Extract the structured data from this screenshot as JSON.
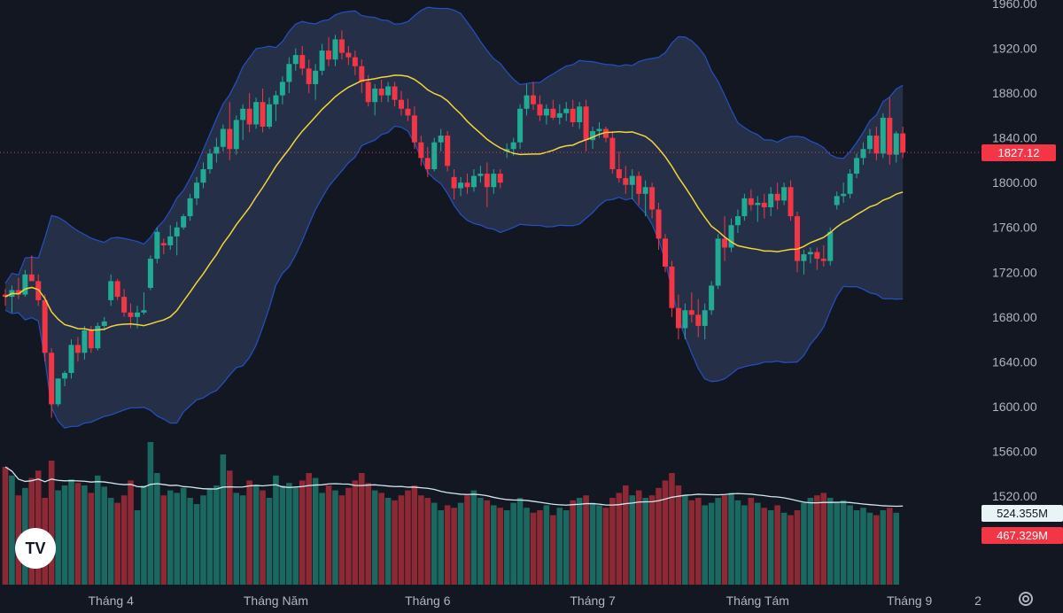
{
  "chart_data": {
    "type": "candlestick",
    "price_axis": {
      "ticks": [
        "1960.00",
        "1920.00",
        "1880.00",
        "1840.00",
        "1800.00",
        "1760.00",
        "1720.00",
        "1680.00",
        "1640.00",
        "1600.00",
        "1560.00",
        "1520.00"
      ],
      "values": [
        1960,
        1920,
        1880,
        1840,
        1800,
        1760,
        1720,
        1680,
        1640,
        1600,
        1560,
        1520
      ],
      "ylim": [
        1476,
        1960
      ]
    },
    "x_axis": {
      "labels": [
        "Tháng 4",
        "Tháng Năm",
        "Tháng 6",
        "Tháng 7",
        "Tháng Tám",
        "Tháng 9"
      ],
      "label_positions_index": [
        16,
        41,
        64,
        89,
        114,
        137
      ]
    },
    "extra_axis_label": "2",
    "last_price": "1827.12",
    "volume_ma_label": "524.355M",
    "volume_label": "467.329M",
    "colors": {
      "up": "#22ab94",
      "down": "#f23645",
      "ma": "#f2d53a",
      "band": "#2c3a55",
      "bandLine": "#2962ff",
      "volMa": "#d1e8ef"
    },
    "candles": [
      [
        1700,
        1705,
        1690,
        1698
      ],
      [
        1698,
        1708,
        1684,
        1704
      ],
      [
        1704,
        1715,
        1696,
        1700
      ],
      [
        1700,
        1722,
        1698,
        1718
      ],
      [
        1718,
        1735,
        1715,
        1712
      ],
      [
        1712,
        1718,
        1690,
        1695
      ],
      [
        1695,
        1700,
        1640,
        1648
      ],
      [
        1648,
        1652,
        1590,
        1602
      ],
      [
        1602,
        1625,
        1600,
        1625
      ],
      [
        1625,
        1632,
        1618,
        1630
      ],
      [
        1630,
        1660,
        1625,
        1655
      ],
      [
        1655,
        1662,
        1640,
        1648
      ],
      [
        1648,
        1672,
        1642,
        1668
      ],
      [
        1668,
        1672,
        1648,
        1652
      ],
      [
        1652,
        1675,
        1650,
        1672
      ],
      [
        1672,
        1680,
        1668,
        1676
      ],
      [
        1695,
        1718,
        1690,
        1712
      ],
      [
        1712,
        1714,
        1695,
        1698
      ],
      [
        1698,
        1705,
        1680,
        1684
      ],
      [
        1684,
        1692,
        1670,
        1680
      ],
      [
        1680,
        1690,
        1670,
        1684
      ],
      [
        1684,
        1702,
        1682,
        1686
      ],
      [
        1706,
        1735,
        1704,
        1732
      ],
      [
        1732,
        1760,
        1728,
        1756
      ],
      [
        1746,
        1750,
        1736,
        1744
      ],
      [
        1744,
        1762,
        1740,
        1752
      ],
      [
        1752,
        1765,
        1735,
        1760
      ],
      [
        1760,
        1772,
        1758,
        1770
      ],
      [
        1770,
        1790,
        1766,
        1786
      ],
      [
        1786,
        1805,
        1780,
        1800
      ],
      [
        1800,
        1818,
        1795,
        1812
      ],
      [
        1812,
        1830,
        1808,
        1826
      ],
      [
        1826,
        1840,
        1818,
        1832
      ],
      [
        1832,
        1852,
        1828,
        1848
      ],
      [
        1848,
        1872,
        1820,
        1830
      ],
      [
        1830,
        1860,
        1825,
        1856
      ],
      [
        1856,
        1870,
        1838,
        1866
      ],
      [
        1866,
        1880,
        1845,
        1852
      ],
      [
        1852,
        1876,
        1848,
        1872
      ],
      [
        1872,
        1884,
        1845,
        1850
      ],
      [
        1850,
        1876,
        1848,
        1870
      ],
      [
        1870,
        1882,
        1855,
        1878
      ],
      [
        1878,
        1895,
        1870,
        1890
      ],
      [
        1890,
        1912,
        1880,
        1906
      ],
      [
        1906,
        1920,
        1900,
        1914
      ],
      [
        1914,
        1922,
        1896,
        1902
      ],
      [
        1902,
        1910,
        1880,
        1888
      ],
      [
        1888,
        1906,
        1874,
        1900
      ],
      [
        1900,
        1924,
        1896,
        1918
      ],
      [
        1918,
        1930,
        1904,
        1910
      ],
      [
        1910,
        1932,
        1904,
        1928
      ],
      [
        1928,
        1936,
        1910,
        1916
      ],
      [
        1916,
        1922,
        1905,
        1912
      ],
      [
        1912,
        1918,
        1896,
        1904
      ],
      [
        1904,
        1910,
        1880,
        1890
      ],
      [
        1890,
        1896,
        1868,
        1872
      ],
      [
        1872,
        1888,
        1860,
        1884
      ],
      [
        1884,
        1892,
        1872,
        1878
      ],
      [
        1878,
        1890,
        1872,
        1886
      ],
      [
        1886,
        1890,
        1868,
        1874
      ],
      [
        1874,
        1882,
        1860,
        1866
      ],
      [
        1866,
        1875,
        1855,
        1860
      ],
      [
        1860,
        1868,
        1830,
        1836
      ],
      [
        1836,
        1842,
        1815,
        1822
      ],
      [
        1822,
        1832,
        1805,
        1812
      ],
      [
        1812,
        1840,
        1810,
        1836
      ],
      [
        1836,
        1848,
        1828,
        1842
      ],
      [
        1842,
        1846,
        1810,
        1815
      ],
      [
        1805,
        1812,
        1785,
        1795
      ],
      [
        1795,
        1805,
        1788,
        1800
      ],
      [
        1800,
        1808,
        1790,
        1796
      ],
      [
        1796,
        1812,
        1792,
        1806
      ],
      [
        1806,
        1815,
        1800,
        1808
      ],
      [
        1808,
        1818,
        1778,
        1796
      ],
      [
        1796,
        1812,
        1790,
        1808
      ],
      [
        1808,
        1812,
        1795,
        1800
      ],
      [
        1828,
        1835,
        1822,
        1830
      ],
      [
        1830,
        1840,
        1824,
        1836
      ],
      [
        1836,
        1870,
        1830,
        1866
      ],
      [
        1866,
        1888,
        1860,
        1878
      ],
      [
        1878,
        1890,
        1865,
        1870
      ],
      [
        1870,
        1878,
        1855,
        1860
      ],
      [
        1860,
        1870,
        1852,
        1866
      ],
      [
        1866,
        1874,
        1856,
        1858
      ],
      [
        1858,
        1870,
        1852,
        1862
      ],
      [
        1862,
        1872,
        1855,
        1866
      ],
      [
        1866,
        1874,
        1850,
        1854
      ],
      [
        1854,
        1872,
        1848,
        1868
      ],
      [
        1868,
        1874,
        1828,
        1838
      ],
      [
        1838,
        1850,
        1830,
        1846
      ],
      [
        1846,
        1854,
        1840,
        1848
      ],
      [
        1848,
        1850,
        1836,
        1840
      ],
      [
        1840,
        1846,
        1808,
        1812
      ],
      [
        1812,
        1828,
        1800,
        1804
      ],
      [
        1804,
        1815,
        1790,
        1798
      ],
      [
        1798,
        1812,
        1785,
        1806
      ],
      [
        1806,
        1810,
        1780,
        1790
      ],
      [
        1790,
        1802,
        1770,
        1796
      ],
      [
        1796,
        1800,
        1768,
        1776
      ],
      [
        1776,
        1782,
        1740,
        1750
      ],
      [
        1750,
        1754,
        1720,
        1725
      ],
      [
        1725,
        1730,
        1680,
        1688
      ],
      [
        1688,
        1700,
        1660,
        1670
      ],
      [
        1670,
        1692,
        1660,
        1686
      ],
      [
        1686,
        1702,
        1675,
        1682
      ],
      [
        1682,
        1696,
        1662,
        1672
      ],
      [
        1672,
        1692,
        1660,
        1686
      ],
      [
        1686,
        1712,
        1682,
        1708
      ],
      [
        1708,
        1754,
        1705,
        1750
      ],
      [
        1750,
        1770,
        1730,
        1742
      ],
      [
        1742,
        1768,
        1738,
        1762
      ],
      [
        1762,
        1776,
        1755,
        1770
      ],
      [
        1770,
        1790,
        1766,
        1786
      ],
      [
        1786,
        1794,
        1775,
        1780
      ],
      [
        1780,
        1788,
        1765,
        1782
      ],
      [
        1782,
        1790,
        1768,
        1778
      ],
      [
        1778,
        1796,
        1770,
        1790
      ],
      [
        1790,
        1800,
        1776,
        1784
      ],
      [
        1784,
        1800,
        1780,
        1796
      ],
      [
        1796,
        1802,
        1766,
        1770
      ],
      [
        1770,
        1774,
        1720,
        1730
      ],
      [
        1730,
        1740,
        1718,
        1736
      ],
      [
        1736,
        1742,
        1728,
        1738
      ],
      [
        1738,
        1742,
        1722,
        1732
      ],
      [
        1732,
        1744,
        1725,
        1730
      ],
      [
        1730,
        1760,
        1726,
        1756
      ],
      [
        1780,
        1792,
        1776,
        1788
      ],
      [
        1788,
        1800,
        1782,
        1790
      ],
      [
        1790,
        1812,
        1786,
        1808
      ],
      [
        1808,
        1826,
        1804,
        1822
      ],
      [
        1822,
        1836,
        1816,
        1830
      ],
      [
        1830,
        1848,
        1826,
        1842
      ],
      [
        1842,
        1850,
        1820,
        1826
      ],
      [
        1826,
        1862,
        1822,
        1858
      ],
      [
        1858,
        1876,
        1816,
        1825
      ],
      [
        1825,
        1846,
        1818,
        1844
      ],
      [
        1844,
        1850,
        1822,
        1827
      ]
    ],
    "volumes": [
      0.95,
      0.88,
      0.72,
      0.78,
      0.86,
      0.92,
      0.7,
      1.0,
      0.76,
      0.8,
      0.85,
      0.82,
      0.8,
      0.74,
      0.88,
      0.79,
      0.7,
      0.66,
      0.72,
      0.84,
      0.6,
      0.8,
      1.15,
      0.9,
      0.72,
      0.76,
      0.74,
      0.78,
      0.7,
      0.65,
      0.72,
      0.78,
      0.8,
      1.05,
      0.92,
      0.74,
      0.72,
      0.84,
      0.8,
      0.76,
      0.7,
      0.88,
      0.8,
      0.82,
      0.78,
      0.84,
      0.9,
      0.86,
      0.74,
      0.8,
      0.76,
      0.72,
      0.78,
      0.84,
      0.9,
      0.82,
      0.76,
      0.74,
      0.7,
      0.68,
      0.72,
      0.76,
      0.8,
      0.72,
      0.7,
      0.66,
      0.6,
      0.64,
      0.62,
      0.66,
      0.72,
      0.76,
      0.7,
      0.68,
      0.64,
      0.62,
      0.6,
      0.66,
      0.7,
      0.62,
      0.58,
      0.6,
      0.64,
      0.56,
      0.62,
      0.6,
      0.68,
      0.7,
      0.72,
      0.66,
      0.64,
      0.62,
      0.7,
      0.74,
      0.8,
      0.72,
      0.76,
      0.7,
      0.72,
      0.78,
      0.84,
      0.9,
      0.8,
      0.72,
      0.68,
      0.7,
      0.64,
      0.66,
      0.7,
      0.72,
      0.74,
      0.68,
      0.64,
      0.7,
      0.66,
      0.62,
      0.6,
      0.64,
      0.58,
      0.56,
      0.6,
      0.66,
      0.7,
      0.72,
      0.74,
      0.7,
      0.66,
      0.68,
      0.64,
      0.6,
      0.62,
      0.58,
      0.56,
      0.6,
      0.62,
      0.58
    ]
  },
  "ui": {
    "logo_text": "TV",
    "settings_icon": "gear-icon"
  }
}
